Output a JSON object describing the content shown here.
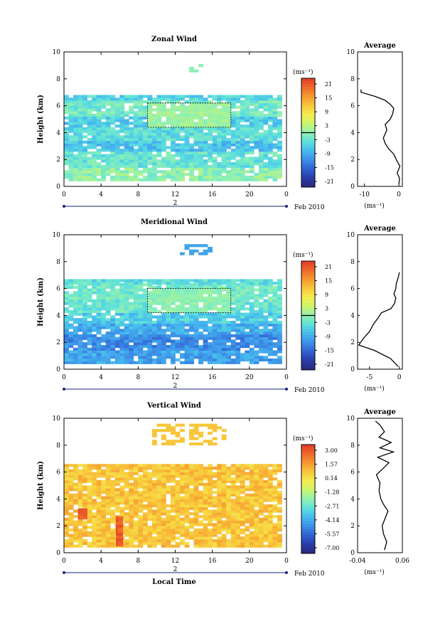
{
  "chart_data": [
    {
      "type": "heatmap",
      "title": "Zonal Wind",
      "ylabel": "Height (km)",
      "xlim": [
        0,
        24
      ],
      "ylim": [
        0,
        10
      ],
      "x_ticks": [
        "0",
        "4",
        "8",
        "12",
        "16",
        "20",
        "0"
      ],
      "y_ticks": [
        "0",
        "2",
        "4",
        "6",
        "8",
        "10"
      ],
      "date_day": "2",
      "date_label": "Feb 2010",
      "colorbar": {
        "unit": "(ms⁻¹)",
        "ticks": [
          "21",
          "15",
          "9",
          "3",
          "-3",
          "-9",
          "-15",
          "-21"
        ],
        "range": [
          -24,
          24
        ]
      },
      "field": {
        "layers": [
          {
            "y0": 0.4,
            "y1": 1.4,
            "x0": 0,
            "x1": 23.5,
            "value": 0
          },
          {
            "y0": 1.4,
            "y1": 2.6,
            "x0": 0,
            "x1": 23.5,
            "value": -3
          },
          {
            "y0": 2.6,
            "y1": 3.4,
            "x0": 0,
            "x1": 23.5,
            "value": -7
          },
          {
            "y0": 3.4,
            "y1": 4.4,
            "x0": 0,
            "x1": 23.5,
            "value": -4
          },
          {
            "y0": 4.4,
            "y1": 5.2,
            "x0": 0,
            "x1": 23.5,
            "value": -6
          },
          {
            "y0": 5.2,
            "y1": 6.4,
            "x0": 0,
            "x1": 23.5,
            "value": -2
          },
          {
            "y0": 6.4,
            "y1": 6.7,
            "x0": 0,
            "x1": 23.5,
            "value": -5
          }
        ],
        "core": {
          "x0": 9,
          "x1": 18,
          "y0": 4.4,
          "y1": 6.2,
          "value": 1
        },
        "sparse": [
          {
            "x0": 13.5,
            "x1": 15,
            "y0": 8.5,
            "y1": 9.2
          }
        ]
      },
      "profile": {
        "title": "Average",
        "xlabel": "(ms⁻¹)",
        "xlim": [
          -12,
          1
        ],
        "x_ticks": [
          "-10",
          "0"
        ],
        "points": [
          [
            0,
            0.2
          ],
          [
            0.2,
            0.6
          ],
          [
            -0.5,
            1.0
          ],
          [
            0.3,
            1.5
          ],
          [
            -0.8,
            2.0
          ],
          [
            -1.5,
            2.4
          ],
          [
            -3,
            2.8
          ],
          [
            -4,
            3.2
          ],
          [
            -4.5,
            3.6
          ],
          [
            -3.5,
            4.2
          ],
          [
            -4,
            4.6
          ],
          [
            -2.5,
            5.0
          ],
          [
            -1.8,
            5.4
          ],
          [
            -1.5,
            5.8
          ],
          [
            -2.5,
            6.1
          ],
          [
            -4,
            6.4
          ],
          [
            -7,
            6.7
          ],
          [
            -11,
            7.0
          ],
          [
            -11,
            7.2
          ]
        ]
      }
    },
    {
      "type": "heatmap",
      "title": "Meridional Wind",
      "ylabel": "Height (km)",
      "xlim": [
        0,
        24
      ],
      "ylim": [
        0,
        10
      ],
      "x_ticks": [
        "0",
        "4",
        "8",
        "12",
        "16",
        "20",
        "0"
      ],
      "y_ticks": [
        "0",
        "2",
        "4",
        "6",
        "8",
        "10"
      ],
      "date_day": "2",
      "date_label": "Feb 2010",
      "colorbar": {
        "unit": "(ms⁻¹)",
        "ticks": [
          "21",
          "15",
          "9",
          "3",
          "-3",
          "-9",
          "-15",
          "-21"
        ],
        "range": [
          -24,
          24
        ]
      },
      "field": {
        "layers": [
          {
            "y0": 0.4,
            "y1": 1.4,
            "x0": 0,
            "x1": 23.5,
            "value": -10
          },
          {
            "y0": 1.4,
            "y1": 2.6,
            "x0": 0,
            "x1": 23.5,
            "value": -12
          },
          {
            "y0": 2.6,
            "y1": 3.4,
            "x0": 0,
            "x1": 23.5,
            "value": -9
          },
          {
            "y0": 3.4,
            "y1": 4.2,
            "x0": 0,
            "x1": 23.5,
            "value": -6
          },
          {
            "y0": 4.2,
            "y1": 5.2,
            "x0": 0,
            "x1": 23.5,
            "value": -3
          },
          {
            "y0": 5.2,
            "y1": 6.3,
            "x0": 0,
            "x1": 23.5,
            "value": -2
          },
          {
            "y0": 6.3,
            "y1": 6.6,
            "x0": 0,
            "x1": 23.5,
            "value": -4
          }
        ],
        "core": {
          "x0": 9,
          "x1": 18,
          "y0": 4.2,
          "y1": 6.0,
          "value": 0
        },
        "sparse": [
          {
            "x0": 12.5,
            "x1": 16,
            "y0": 8.5,
            "y1": 9.2
          }
        ]
      },
      "profile": {
        "title": "Average",
        "xlabel": "(ms⁻¹)",
        "xlim": [
          -7,
          0.5
        ],
        "x_ticks": [
          "-5",
          "0"
        ],
        "points": [
          [
            -0.2,
            0.2
          ],
          [
            -1.5,
            0.8
          ],
          [
            -4.2,
            1.4
          ],
          [
            -6.8,
            1.8
          ],
          [
            -6,
            2.3
          ],
          [
            -5,
            2.8
          ],
          [
            -4.4,
            3.3
          ],
          [
            -3.6,
            3.8
          ],
          [
            -3,
            4.2
          ],
          [
            -1.4,
            4.5
          ],
          [
            -0.8,
            4.9
          ],
          [
            -0.6,
            5.3
          ],
          [
            -0.9,
            5.6
          ],
          [
            -0.6,
            6.0
          ],
          [
            -0.5,
            6.4
          ],
          [
            -0.2,
            6.8
          ],
          [
            0,
            7.2
          ]
        ]
      }
    },
    {
      "type": "heatmap",
      "title": "Vertical Wind",
      "ylabel": "Height (km)",
      "xlabel": "Local Time",
      "xlim": [
        0,
        24
      ],
      "ylim": [
        0,
        10
      ],
      "x_ticks": [
        "0",
        "4",
        "8",
        "12",
        "16",
        "20",
        "0"
      ],
      "y_ticks": [
        "0",
        "2",
        "4",
        "6",
        "8",
        "10"
      ],
      "date_day": "2",
      "date_label": "Feb 2010",
      "colorbar": {
        "unit": "(ms⁻¹)",
        "ticks": [
          "3.00",
          "1.57",
          "0.14",
          "-1.28",
          "-2.71",
          "-4.14",
          "-5.57",
          "-7.00"
        ],
        "range": [
          -7.7,
          3.7
        ]
      },
      "field": {
        "layers": [
          {
            "y0": 0.4,
            "y1": 6.6,
            "x0": 0,
            "x1": 23.5,
            "value": 0.9
          }
        ],
        "hot": [
          {
            "x0": 5.6,
            "x1": 6.0,
            "y0": 0.5,
            "y1": 2.6
          },
          {
            "x0": 1.5,
            "x1": 2.2,
            "y0": 2.5,
            "y1": 3.2
          }
        ],
        "sparse": [
          {
            "x0": 9.5,
            "x1": 17.5,
            "y0": 8.0,
            "y1": 9.6
          }
        ]
      },
      "profile": {
        "title": "Average",
        "xlabel": "(ms⁻¹)",
        "xlim": [
          -0.04,
          0.06
        ],
        "x_ticks": [
          "-0.04",
          "0.06"
        ],
        "points": [
          [
            0.02,
            0.2
          ],
          [
            0.025,
            0.8
          ],
          [
            0.018,
            1.4
          ],
          [
            0.015,
            2.0
          ],
          [
            0.022,
            2.6
          ],
          [
            0.028,
            3.1
          ],
          [
            0.018,
            3.6
          ],
          [
            0.012,
            4.0
          ],
          [
            0.008,
            4.6
          ],
          [
            0.01,
            5.2
          ],
          [
            0.002,
            5.8
          ],
          [
            0.015,
            6.2
          ],
          [
            0.03,
            6.7
          ],
          [
            0.005,
            7.1
          ],
          [
            0.04,
            7.5
          ],
          [
            0.01,
            7.8
          ],
          [
            0.035,
            8.2
          ],
          [
            0.008,
            8.6
          ],
          [
            0.02,
            9.0
          ],
          [
            0.01,
            9.5
          ],
          [
            0.0,
            9.8
          ]
        ]
      }
    }
  ]
}
